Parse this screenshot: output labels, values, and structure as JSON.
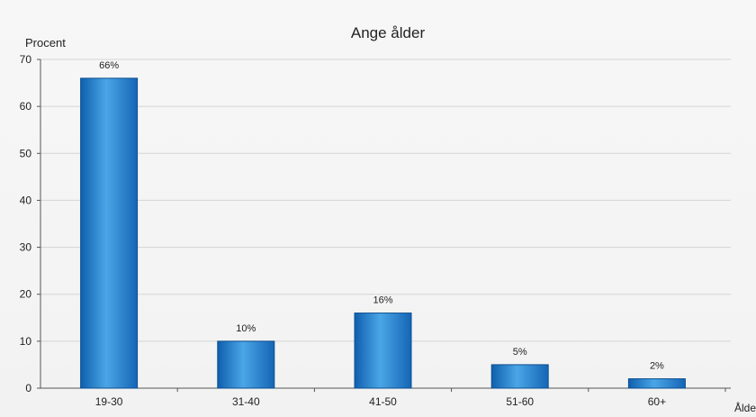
{
  "chart_data": {
    "type": "bar",
    "title": "Ange ålder",
    "ylabel": "Procent",
    "xlabel": "Ålder",
    "categories": [
      "19-30",
      "31-40",
      "41-50",
      "51-60",
      "60+"
    ],
    "values": [
      66,
      10,
      16,
      5,
      2
    ],
    "data_labels": [
      "66%",
      "10%",
      "16%",
      "5%",
      "2%"
    ],
    "ylim": [
      0,
      70
    ],
    "yticks": [
      0,
      10,
      20,
      30,
      40,
      50,
      60,
      70
    ],
    "grid": true,
    "legend": "none",
    "bar_color": "#1f7fcf",
    "bar_edge_color": "#0d4f8f"
  }
}
